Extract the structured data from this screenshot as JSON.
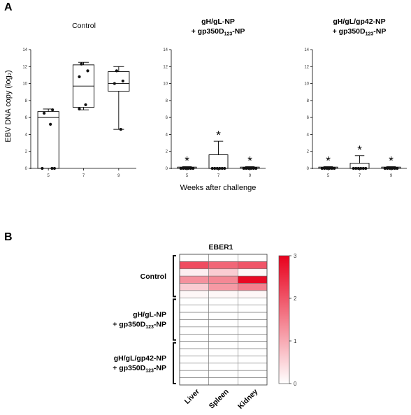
{
  "panel_a_letter": "A",
  "panel_b_letter": "B",
  "chart_data": [
    {
      "type": "box",
      "title": "Control",
      "ylabel": "EBV DNA copy (log₂)",
      "categories": [
        "5",
        "7",
        "9"
      ],
      "ylim": [
        0,
        14
      ],
      "yticks": [
        0,
        2,
        4,
        6,
        8,
        10,
        12,
        14
      ],
      "boxes": [
        {
          "min": 0,
          "q1": 0,
          "median": 6.0,
          "q3": 6.7,
          "max": 7.0
        },
        {
          "min": 6.9,
          "q1": 7.2,
          "median": 9.7,
          "q3": 12.2,
          "max": 12.5
        },
        {
          "min": 4.6,
          "q1": 9.1,
          "median": 10.0,
          "q3": 11.4,
          "max": 12.0
        }
      ],
      "points": [
        [
          0,
          6.9,
          6.5,
          5.2,
          0,
          0
        ],
        [
          12.3,
          11.5,
          10.8,
          7.5,
          7.0
        ],
        [
          11.5,
          10.3,
          10.0,
          4.6
        ]
      ],
      "asterisks": []
    },
    {
      "type": "box",
      "title": "gH/gL-NP",
      "title_line2_main": "+ gp350D",
      "title_line2_sub": "123",
      "title_line2_end": "-NP",
      "categories": [
        "5",
        "7",
        "9"
      ],
      "ylim": [
        0,
        14
      ],
      "yticks": [
        0,
        2,
        4,
        6,
        8,
        10,
        12,
        14
      ],
      "boxes": [
        {
          "min": 0,
          "q1": 0,
          "median": 0,
          "q3": 0.15,
          "max": 0.2
        },
        {
          "min": 0,
          "q1": 0,
          "median": 0,
          "q3": 1.6,
          "max": 3.2
        },
        {
          "min": 0,
          "q1": 0,
          "median": 0,
          "q3": 0.15,
          "max": 0.2
        }
      ],
      "points": [
        [
          0,
          0,
          0,
          0,
          0,
          0
        ],
        [
          0,
          0,
          0,
          0,
          0,
          0
        ],
        [
          0,
          0,
          0,
          0,
          0,
          0
        ]
      ],
      "asterisks": [
        "*",
        "*",
        "*"
      ],
      "xlabel": "Weeks after challenge"
    },
    {
      "type": "box",
      "title": "gH/gL/gp42-NP",
      "title_line2_main": "+ gp350D",
      "title_line2_sub": "123",
      "title_line2_end": "-NP",
      "categories": [
        "5",
        "7",
        "9"
      ],
      "ylim": [
        0,
        14
      ],
      "yticks": [
        0,
        2,
        4,
        6,
        8,
        10,
        12,
        14
      ],
      "boxes": [
        {
          "min": 0,
          "q1": 0,
          "median": 0,
          "q3": 0.15,
          "max": 0.2
        },
        {
          "min": 0,
          "q1": 0,
          "median": 0,
          "q3": 0.6,
          "max": 1.5
        },
        {
          "min": 0,
          "q1": 0,
          "median": 0,
          "q3": 0.15,
          "max": 0.2
        }
      ],
      "points": [
        [
          0,
          0,
          0,
          0,
          0,
          0
        ],
        [
          0,
          0,
          0,
          0,
          0,
          0
        ],
        [
          0,
          0,
          0,
          0,
          0,
          0
        ]
      ],
      "asterisks": [
        "*",
        "*",
        "*"
      ]
    },
    {
      "type": "heatmap",
      "title": "EBER1",
      "columns": [
        "Liver",
        "Spleen",
        "Kidney"
      ],
      "groups": [
        {
          "label_lines": [
            "Control"
          ],
          "rows": [
            0,
            5
          ]
        },
        {
          "label_lines": [
            "gH/gL-NP"
          ],
          "rows": [
            6,
            11
          ]
        },
        {
          "label_lines": [
            "gH/gL/gp42-NP"
          ],
          "rows": [
            12,
            17
          ]
        }
      ],
      "group_line2": {
        "main": "+ gp350D",
        "sub": "123",
        "end": "-NP"
      },
      "values": [
        [
          0,
          0,
          0
        ],
        [
          2.1,
          1.8,
          2.0
        ],
        [
          0.2,
          0.6,
          0.1
        ],
        [
          1.3,
          1.4,
          2.9
        ],
        [
          0.6,
          1.2,
          1.5
        ],
        [
          0.1,
          0.1,
          0.1
        ],
        [
          0,
          0,
          0
        ],
        [
          0,
          0,
          0
        ],
        [
          0,
          0,
          0
        ],
        [
          0,
          0,
          0
        ],
        [
          0,
          0,
          0
        ],
        [
          0,
          0,
          0
        ],
        [
          0,
          0,
          0
        ],
        [
          0,
          0,
          0
        ],
        [
          0,
          0,
          0
        ],
        [
          0,
          0,
          0
        ],
        [
          0,
          0,
          0
        ],
        [
          0,
          0,
          0
        ]
      ],
      "scale": {
        "min": 0,
        "max": 3,
        "ticks": [
          "0",
          "1",
          "2",
          "3"
        ],
        "low_color": "#ffffff",
        "high_color": "#e8001c"
      }
    }
  ]
}
